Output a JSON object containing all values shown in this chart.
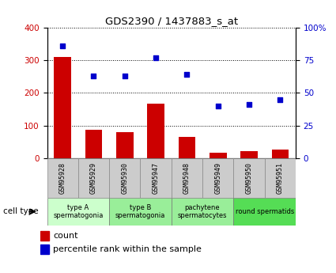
{
  "title": "GDS2390 / 1437883_s_at",
  "samples": [
    "GSM95928",
    "GSM95929",
    "GSM95930",
    "GSM95947",
    "GSM95948",
    "GSM95949",
    "GSM95950",
    "GSM95951"
  ],
  "counts": [
    310,
    88,
    80,
    168,
    65,
    18,
    22,
    27
  ],
  "percentile_ranks": [
    86,
    63,
    63,
    77,
    64,
    40,
    41,
    45
  ],
  "cell_types": [
    {
      "label": "type A\nspermatogonia",
      "span": [
        0,
        2
      ],
      "color": "#ccffcc"
    },
    {
      "label": "type B\nspermatogonia",
      "span": [
        2,
        4
      ],
      "color": "#99ee99"
    },
    {
      "label": "pachytene\nspermatocytes",
      "span": [
        4,
        6
      ],
      "color": "#99ee99"
    },
    {
      "label": "round spermatids",
      "span": [
        6,
        8
      ],
      "color": "#55dd55"
    }
  ],
  "bar_color": "#cc0000",
  "dot_color": "#0000cc",
  "left_axis_color": "#cc0000",
  "right_axis_color": "#0000cc",
  "ylim_left": [
    0,
    400
  ],
  "ylim_right": [
    0,
    100
  ],
  "left_ticks": [
    0,
    100,
    200,
    300,
    400
  ],
  "right_ticks": [
    0,
    25,
    50,
    75,
    100
  ],
  "right_tick_labels": [
    "0",
    "25",
    "50",
    "75",
    "100%"
  ],
  "sample_box_color": "#cccccc",
  "cell_type_label": "cell type",
  "legend_count_label": "count",
  "legend_pct_label": "percentile rank within the sample"
}
